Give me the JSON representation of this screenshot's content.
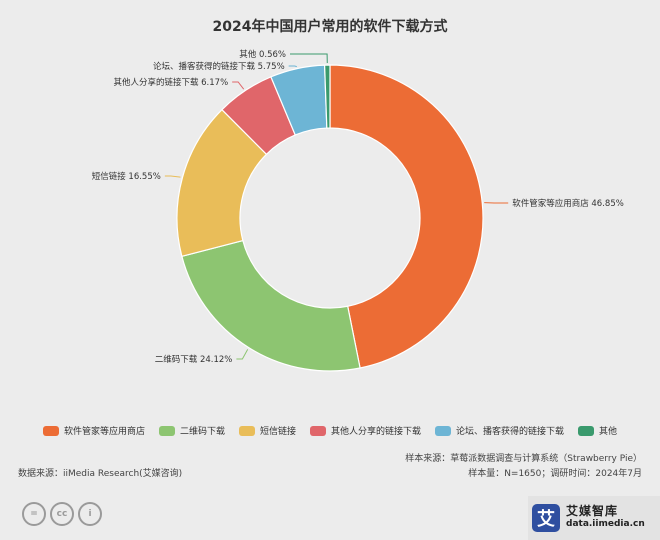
{
  "chart_data": {
    "type": "pie",
    "donut": true,
    "title": "2024年中国用户常用的软件下载方式",
    "slices": [
      {
        "name": "软件管家等应用商店",
        "value": 46.85,
        "label": "软件管家等应用商店 46.85%",
        "color": "#ec6c35"
      },
      {
        "name": "二维码下载",
        "value": 24.12,
        "label": "二维码下载 24.12%",
        "color": "#8dc571"
      },
      {
        "name": "短信链接",
        "value": 16.55,
        "label": "短信链接 16.55%",
        "color": "#e9bd59"
      },
      {
        "name": "其他人分享的链接下载",
        "value": 6.17,
        "label": "其他人分享的链接下载 6.17%",
        "color": "#e0666a"
      },
      {
        "name": "论坛、播客获得的链接下载",
        "value": 5.75,
        "label": "论坛、播客获得的链接下载 5.75%",
        "color": "#6db5d5"
      },
      {
        "name": "其他",
        "value": 0.56,
        "label": "其他 0.56%",
        "color": "#3a9a6d"
      }
    ],
    "legend_position": "bottom"
  },
  "footer": {
    "source": "数据来源：iiMedia Research(艾媒咨询)",
    "sample_source": "样本来源：草莓派数据调查与计算系统（Strawberry Pie）",
    "sample_info": "样本量：N=1650；调研时间：2024年7月"
  },
  "license_badges": [
    "=",
    "cc",
    "i"
  ],
  "brand": {
    "logo_glyph": "艾",
    "name": "艾媒智库",
    "url": "data.iimedia.cn"
  }
}
